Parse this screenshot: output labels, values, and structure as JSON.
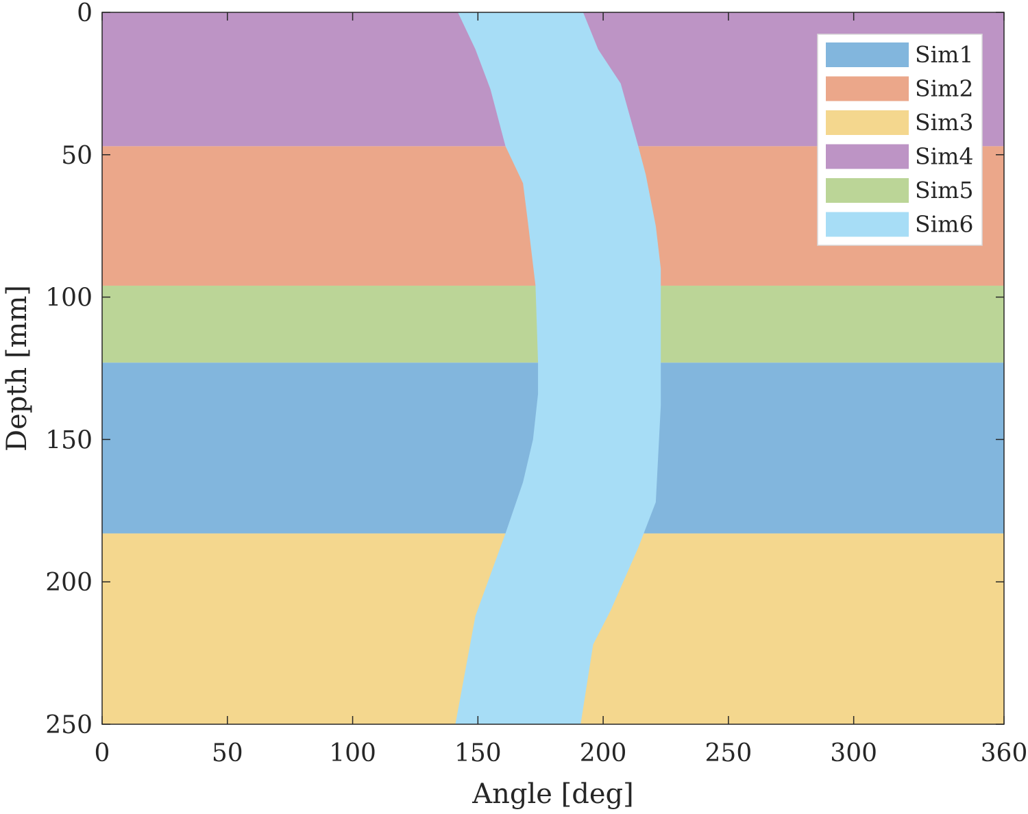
{
  "chart_data": {
    "type": "area",
    "title": "",
    "xlabel": "Angle [deg]",
    "ylabel": "Depth [mm]",
    "xlim": [
      0,
      360
    ],
    "ylim": [
      0,
      250
    ],
    "y_reversed": true,
    "grid": false,
    "xticks": [
      0,
      50,
      100,
      150,
      200,
      250,
      300,
      360
    ],
    "yticks": [
      0,
      50,
      100,
      150,
      200,
      250
    ],
    "legend_position": "top-right",
    "series": [
      {
        "name": "Sim1",
        "color": "#82b6dd",
        "depth_range": [
          123,
          183
        ]
      },
      {
        "name": "Sim2",
        "color": "#eba78a",
        "depth_range": [
          47,
          96
        ]
      },
      {
        "name": "Sim3",
        "color": "#f4d78e",
        "depth_range": [
          183,
          250
        ]
      },
      {
        "name": "Sim4",
        "color": "#bd94c5",
        "depth_range": [
          0,
          47
        ]
      },
      {
        "name": "Sim5",
        "color": "#bbd597",
        "depth_range": [
          96,
          123
        ]
      },
      {
        "name": "Sim6",
        "color": "#a7ddf6",
        "left_boundary": [
          [
            0,
            142
          ],
          [
            13,
            149
          ],
          [
            27,
            155
          ],
          [
            47,
            161
          ],
          [
            60,
            168
          ],
          [
            74,
            170
          ],
          [
            96,
            173
          ],
          [
            123,
            174
          ],
          [
            134,
            174
          ],
          [
            150,
            172
          ],
          [
            165,
            168
          ],
          [
            183,
            161
          ],
          [
            212,
            149
          ],
          [
            250,
            141
          ]
        ],
        "right_boundary": [
          [
            0,
            192
          ],
          [
            13,
            198
          ],
          [
            25,
            207
          ],
          [
            47,
            214
          ],
          [
            57,
            217
          ],
          [
            75,
            221
          ],
          [
            90,
            223
          ],
          [
            123,
            223
          ],
          [
            138,
            223
          ],
          [
            172,
            221
          ],
          [
            188,
            214
          ],
          [
            210,
            203
          ],
          [
            222,
            196
          ],
          [
            250,
            191
          ]
        ]
      }
    ]
  },
  "legend": {
    "items": [
      {
        "label": "Sim1",
        "color": "#82b6dd"
      },
      {
        "label": "Sim2",
        "color": "#eba78a"
      },
      {
        "label": "Sim3",
        "color": "#f4d78e"
      },
      {
        "label": "Sim4",
        "color": "#bd94c5"
      },
      {
        "label": "Sim5",
        "color": "#bbd597"
      },
      {
        "label": "Sim6",
        "color": "#a7ddf6"
      }
    ]
  }
}
